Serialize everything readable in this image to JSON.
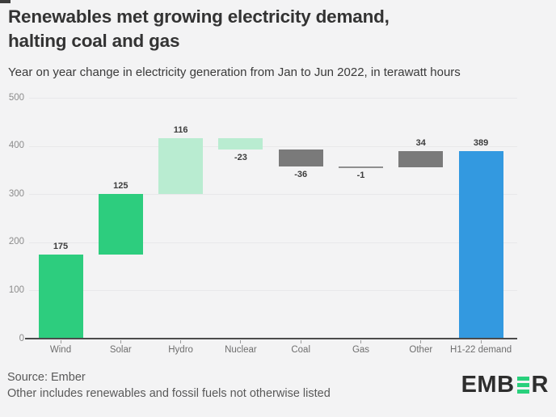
{
  "header": {
    "title_lines": [
      "Renewables met growing electricity demand,",
      "halting coal and gas"
    ],
    "subtitle": "Year on year change in electricity generation from Jan to Jun 2022, in terawatt hours"
  },
  "chart_data": {
    "type": "bar",
    "subtype": "waterfall",
    "title": "Renewables met growing electricity demand, halting coal and gas",
    "xlabel": "",
    "ylabel": "",
    "ylim": [
      0,
      500
    ],
    "yticks": [
      0,
      100,
      200,
      300,
      400,
      500
    ],
    "grid": true,
    "legend": false,
    "categories": [
      "Wind",
      "Solar",
      "Hydro",
      "Nuclear",
      "Coal",
      "Gas",
      "Other",
      "H1-22 demand"
    ],
    "values": [
      175,
      125,
      116,
      -23,
      -36,
      -1,
      34,
      389
    ],
    "bars": [
      {
        "label": "Wind",
        "value": 175,
        "kind": "delta",
        "color": "#2dcd7e"
      },
      {
        "label": "Solar",
        "value": 125,
        "kind": "delta",
        "color": "#2dcd7e"
      },
      {
        "label": "Hydro",
        "value": 116,
        "kind": "delta",
        "color": "#b9ecd1"
      },
      {
        "label": "Nuclear",
        "value": -23,
        "kind": "delta",
        "color": "#b9ecd1"
      },
      {
        "label": "Coal",
        "value": -36,
        "kind": "delta",
        "color": "#7a7a7a"
      },
      {
        "label": "Gas",
        "value": -1,
        "kind": "delta",
        "color": "#8f8f8f"
      },
      {
        "label": "Other",
        "value": 34,
        "kind": "delta",
        "color": "#7a7a7a"
      },
      {
        "label": "H1-22 demand",
        "value": 389,
        "kind": "total",
        "color": "#3399e0"
      }
    ]
  },
  "footer": {
    "source": "Source: Ember",
    "note": "Other includes renewables and fossil fuels not otherwise listed",
    "logo_text_before": "EMB",
    "logo_text_after": "R",
    "logo_green": "#29d07c"
  }
}
